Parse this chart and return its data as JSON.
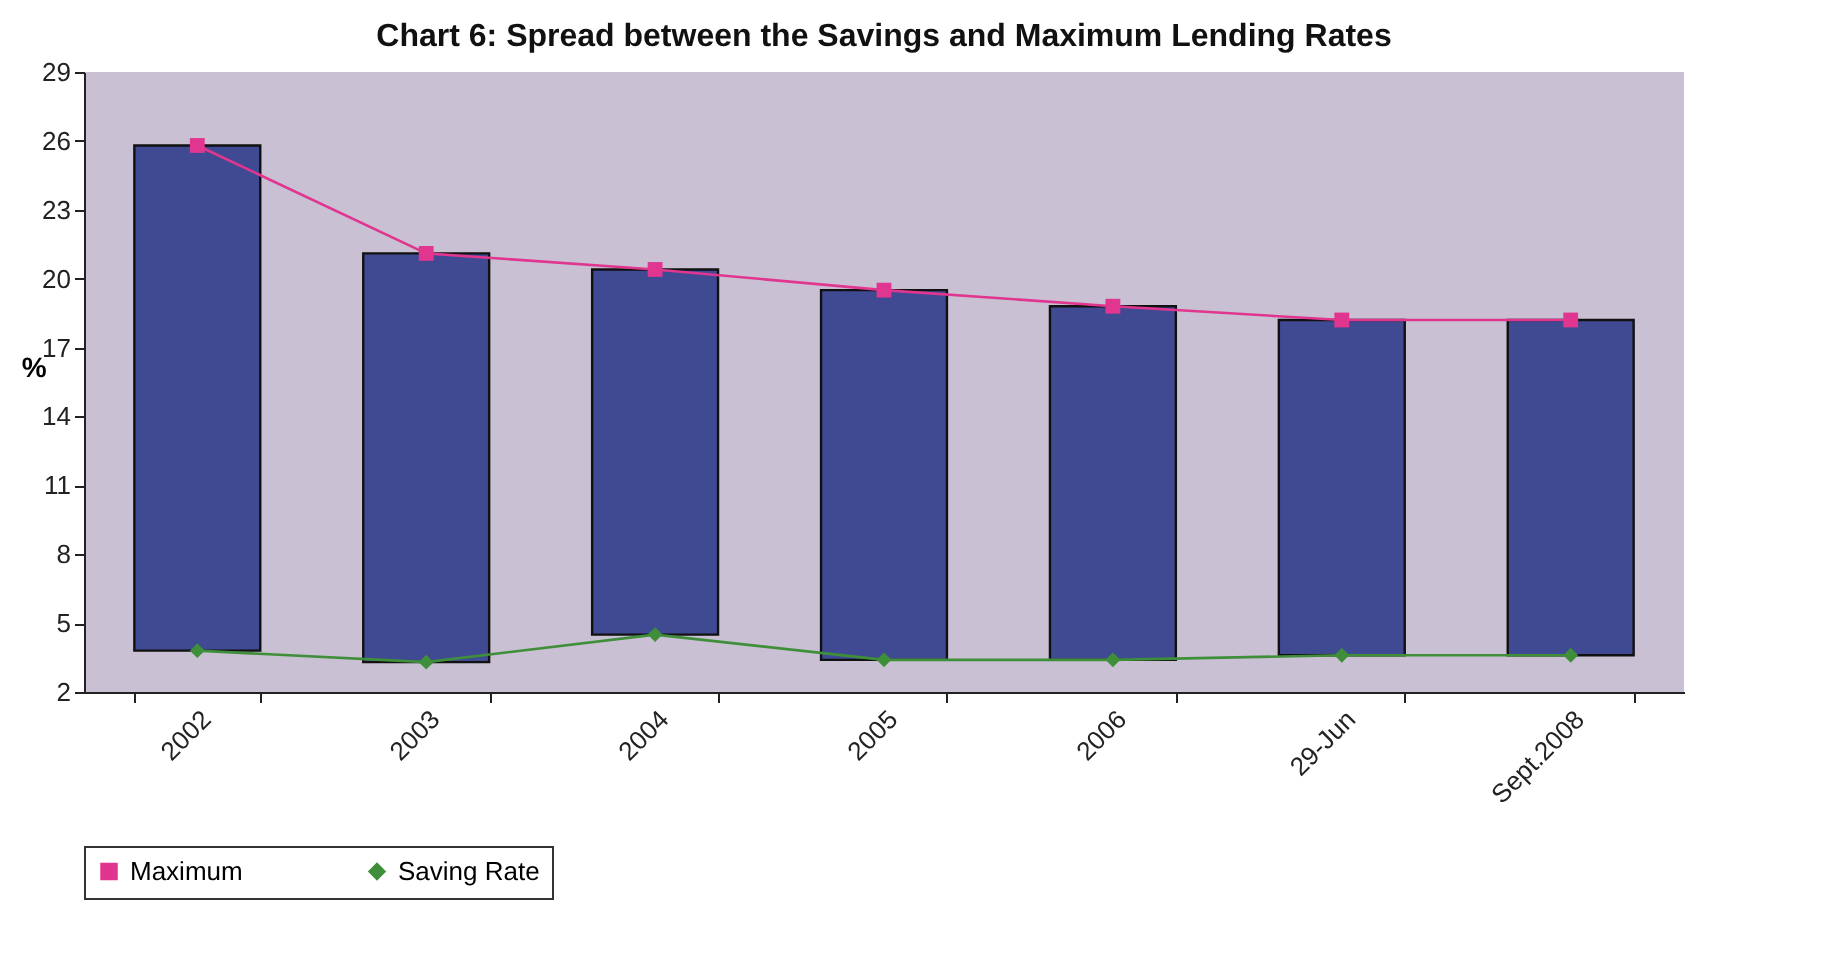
{
  "chart_data": {
    "type": "bar",
    "title": "Chart 6: Spread between the Savings and Maximum Lending Rates",
    "ylabel": "%",
    "categories": [
      "2002",
      "2003",
      "2004",
      "2005",
      "2006",
      "29-Jun",
      "Sept.2008"
    ],
    "series": [
      {
        "type": "bar",
        "color": "#3f4a93",
        "base": [
          3.8,
          3.3,
          4.5,
          3.4,
          3.4,
          3.6,
          3.6
        ],
        "values": [
          22.0,
          17.8,
          15.9,
          16.1,
          15.4,
          14.6,
          14.6
        ]
      },
      {
        "type": "line",
        "name": "Maximum",
        "color": "#e0368f",
        "marker": "square",
        "values": [
          25.8,
          21.1,
          20.4,
          19.5,
          18.8,
          18.2,
          18.2
        ]
      },
      {
        "type": "line",
        "name": "Saving Rate",
        "color": "#3f8f3a",
        "marker": "diamond",
        "values": [
          3.8,
          3.3,
          4.5,
          3.4,
          3.4,
          3.6,
          3.6
        ]
      }
    ],
    "ylim": [
      2,
      29
    ],
    "yticks": [
      2,
      5,
      8,
      11,
      14,
      17,
      20,
      23,
      26,
      29
    ],
    "grid": false,
    "legend": "bottom"
  }
}
